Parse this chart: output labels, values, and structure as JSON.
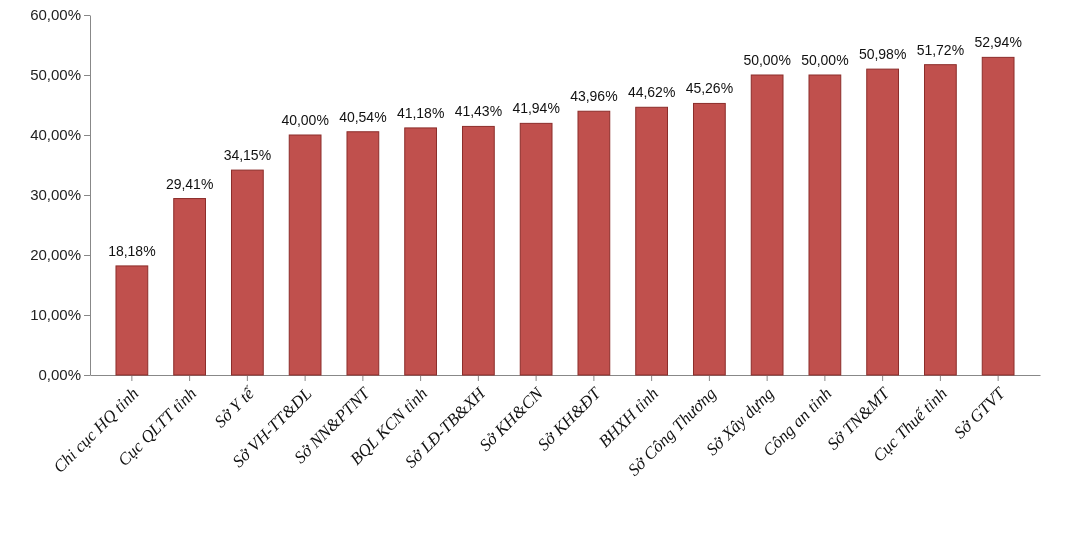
{
  "chart_data": {
    "type": "bar",
    "categories": [
      "Chi cục HQ tỉnh",
      "Cục QLTT tỉnh",
      "Sở Y tế",
      "Sở VH-TT&DL",
      "Sở NN&PTNT",
      "BQL KCN tỉnh",
      "Sở LĐ-TB&XH",
      "Sở KH&CN",
      "Sở KH&ĐT",
      "BHXH tỉnh",
      "Sở Công Thương",
      "Sở Xây dựng",
      "Công an tỉnh",
      "Sở TN&MT",
      "Cục Thuế tỉnh",
      "Sở GTVT"
    ],
    "values": [
      18.18,
      29.41,
      34.15,
      40.0,
      40.54,
      41.18,
      41.43,
      41.94,
      43.96,
      44.62,
      45.26,
      50.0,
      50.0,
      50.98,
      51.72,
      52.94
    ],
    "value_labels": [
      "18,18%",
      "29,41%",
      "34,15%",
      "40,00%",
      "40,54%",
      "41,18%",
      "41,43%",
      "41,94%",
      "43,96%",
      "44,62%",
      "45,26%",
      "50,00%",
      "50,00%",
      "50,98%",
      "51,72%",
      "52,94%"
    ],
    "color": "#c0504d",
    "ylim": [
      0,
      60
    ],
    "yticks": [
      {
        "value": 0,
        "label": "0,00%"
      },
      {
        "value": 10,
        "label": "10,00%"
      },
      {
        "value": 20,
        "label": "20,00%"
      },
      {
        "value": 30,
        "label": "30,00%"
      },
      {
        "value": 40,
        "label": "40,00%"
      },
      {
        "value": 50,
        "label": "50,00%"
      },
      {
        "value": 60,
        "label": "60,00%"
      }
    ],
    "grid": false
  }
}
